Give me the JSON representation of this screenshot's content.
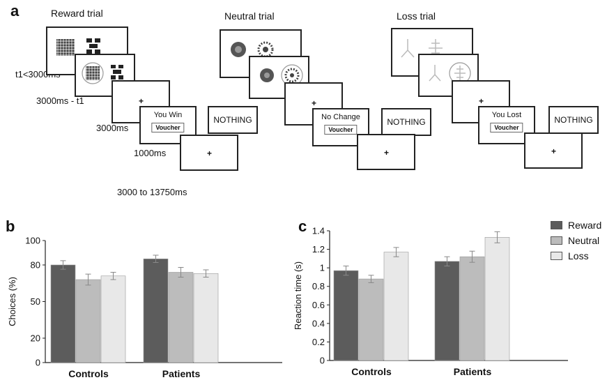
{
  "panel_a": {
    "letter": "a",
    "trials": [
      {
        "title": "Reward trial",
        "outcome_title": "You Win",
        "voucher": "Voucher",
        "nothing": "NOTHING"
      },
      {
        "title": "Neutral trial",
        "outcome_title": "No Change",
        "voucher": "Voucher",
        "nothing": "NOTHING"
      },
      {
        "title": "Loss trial",
        "outcome_title": "You Lost",
        "voucher": "Voucher",
        "nothing": "NOTHING"
      }
    ],
    "timings": [
      "t1<3000ms",
      "3000ms - t1",
      "3000ms",
      "1000ms",
      "3000 to 13750ms"
    ],
    "fixation": "+"
  },
  "chart_data": [
    {
      "panel": "b",
      "type": "bar",
      "categories": [
        "Controls",
        "Patients"
      ],
      "series": [
        {
          "name": "Reward",
          "values": [
            80,
            85
          ],
          "errors": [
            3.5,
            3
          ]
        },
        {
          "name": "Neutral",
          "values": [
            68,
            74
          ],
          "errors": [
            4.5,
            4
          ]
        },
        {
          "name": "Loss",
          "values": [
            71,
            73
          ],
          "errors": [
            3,
            3
          ]
        }
      ],
      "ylabel": "Choices (%)",
      "ylim": [
        0,
        100
      ],
      "y_ticks": [
        0,
        20,
        50,
        80,
        100
      ],
      "y_tick_labels": [
        "0",
        "20",
        "50",
        "80",
        "100"
      ],
      "colors": [
        "#5c5c5c",
        "#bcbcbc",
        "#e8e8e8"
      ]
    },
    {
      "panel": "c",
      "type": "bar",
      "categories": [
        "Controls",
        "Patients"
      ],
      "series": [
        {
          "name": "Reward",
          "values": [
            0.97,
            1.07
          ],
          "errors": [
            0.05,
            0.05
          ]
        },
        {
          "name": "Neutral",
          "values": [
            0.88,
            1.12
          ],
          "errors": [
            0.04,
            0.06
          ]
        },
        {
          "name": "Loss",
          "values": [
            1.17,
            1.33
          ],
          "errors": [
            0.05,
            0.06
          ]
        }
      ],
      "ylabel": "Reaction time (s)",
      "ylim": [
        0,
        1.4
      ],
      "y_ticks": [
        0,
        0.2,
        0.4,
        0.6,
        0.8,
        1.0,
        1.2,
        1.4
      ],
      "y_tick_labels": [
        "0",
        "0.2",
        "0.4",
        "0.6",
        "0.8",
        "1",
        "1.2",
        "1.4"
      ],
      "colors": [
        "#5c5c5c",
        "#bcbcbc",
        "#e8e8e8"
      ]
    }
  ],
  "legend": {
    "items": [
      {
        "label": "Reward",
        "color": "#5c5c5c"
      },
      {
        "label": "Neutral",
        "color": "#bcbcbc"
      },
      {
        "label": "Loss",
        "color": "#e8e8e8"
      }
    ],
    "placement": "top-right"
  }
}
